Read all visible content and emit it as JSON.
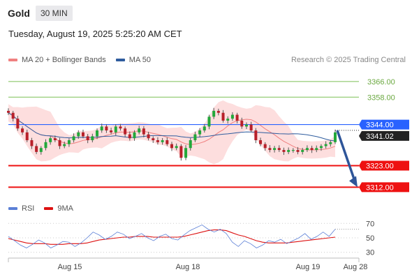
{
  "header": {
    "instrument": "Gold",
    "timeframe": "30 MIN"
  },
  "date_text": "Tuesday, August 19, 2025 5:25:20 AM CET",
  "copyright": "Research © 2025 Trading Central",
  "legend_main": [
    {
      "label": "MA 20 + Bollinger Bands",
      "color": "#f08080"
    },
    {
      "label": "MA 50",
      "color": "#2e5c9e"
    }
  ],
  "legend_rsi": [
    {
      "label": "RSI",
      "color": "#5b7fd6"
    },
    {
      "label": "9MA",
      "color": "#dd1111"
    }
  ],
  "chart_data": {
    "type": "candlestick",
    "y_range": [
      3305,
      3372
    ],
    "x_ticks": [
      "Aug 15",
      "Aug 18",
      "Aug 19",
      "Aug 28"
    ],
    "resistance_levels": [
      {
        "value": 3366,
        "label": "3366.00",
        "color": "#7cbf55"
      },
      {
        "value": 3358,
        "label": "3358.00",
        "color": "#7cbf55"
      }
    ],
    "pivot_level": {
      "value": 3344,
      "label": "3344.00",
      "color": "#2962ff"
    },
    "current_price": {
      "value": 3341.02,
      "label": "3341.02"
    },
    "support_levels": [
      {
        "value": 3323,
        "label": "3323.00",
        "color": "#ee1111"
      },
      {
        "value": 3312,
        "label": "3312.00",
        "color": "#ee1111"
      }
    ],
    "forecast_arrow": {
      "from": 3341,
      "to": 3312
    },
    "close_series": [
      3350,
      3347,
      3342,
      3340,
      3336,
      3333,
      3330,
      3332,
      3335,
      3337,
      3336,
      3333,
      3334,
      3336,
      3338,
      3340,
      3338,
      3336,
      3338,
      3341,
      3343,
      3341,
      3340,
      3343,
      3342,
      3339,
      3337,
      3340,
      3342,
      3339,
      3337,
      3336,
      3335,
      3336,
      3334,
      3332,
      3333,
      3327,
      3332,
      3336,
      3339,
      3341,
      3343,
      3348,
      3351,
      3350,
      3346,
      3347,
      3349,
      3346,
      3343,
      3344,
      3341,
      3336,
      3334,
      3332,
      3331,
      3332,
      3331,
      3330,
      3331,
      3331,
      3330,
      3331,
      3332,
      3331,
      3332,
      3333,
      3334,
      3335,
      3340
    ],
    "rsi": {
      "ticks": [
        70,
        50,
        30
      ],
      "range": [
        22,
        78
      ],
      "rsi_series": [
        52,
        46,
        40,
        36,
        41,
        47,
        43,
        36,
        40,
        45,
        44,
        38,
        43,
        50,
        58,
        54,
        48,
        52,
        58,
        55,
        49,
        52,
        56,
        50,
        46,
        52,
        55,
        49,
        47,
        54,
        60,
        64,
        68,
        62,
        58,
        62,
        56,
        44,
        38,
        46,
        42,
        36,
        40,
        46,
        44,
        48,
        42,
        46,
        50,
        56,
        48,
        52,
        58,
        52,
        62
      ],
      "ma_series": [
        49,
        47,
        45,
        43,
        42,
        42,
        42,
        41,
        41,
        41,
        42,
        42,
        42,
        43,
        45,
        47,
        48,
        49,
        50,
        51,
        51,
        52,
        52,
        52,
        51,
        51,
        51,
        51,
        51,
        52,
        54,
        56,
        58,
        60,
        61,
        61,
        60,
        57,
        54,
        52,
        49,
        46,
        44,
        43,
        43,
        43,
        43,
        44,
        45,
        46,
        47,
        48,
        49,
        50,
        51
      ]
    }
  }
}
